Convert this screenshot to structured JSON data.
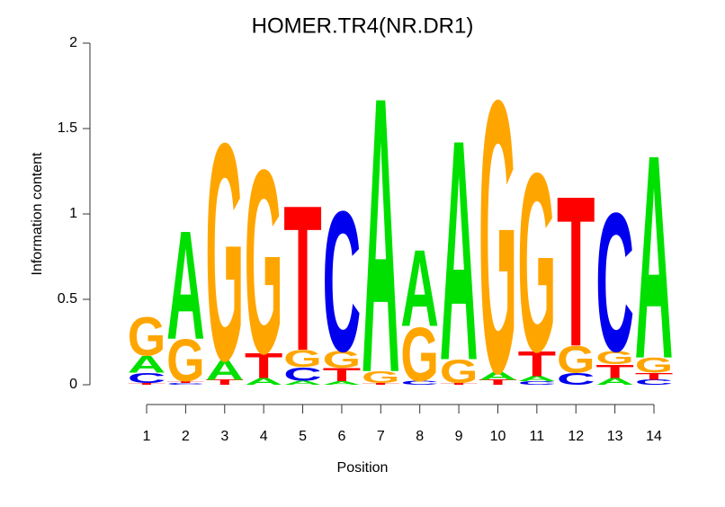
{
  "chart_data": {
    "type": "sequence-logo",
    "title": "HOMER.TR4(NR.DR1)",
    "x_label": "Position",
    "y_label": "Information content",
    "categories": [
      "1",
      "2",
      "3",
      "4",
      "5",
      "6",
      "7",
      "8",
      "9",
      "10",
      "11",
      "12",
      "13",
      "14"
    ],
    "ylim": [
      0,
      2
    ],
    "yticks": [
      0,
      0.5,
      1,
      1.5,
      2
    ],
    "colors": {
      "A": "#00e000",
      "C": "#0000ee",
      "G": "#ffa500",
      "T": "#ff0000"
    },
    "stacks": [
      [
        {
          "letter": "T",
          "value": 0.01
        },
        {
          "letter": "C",
          "value": 0.06
        },
        {
          "letter": "A",
          "value": 0.1
        },
        {
          "letter": "G",
          "value": 0.23
        }
      ],
      [
        {
          "letter": "C",
          "value": 0.01
        },
        {
          "letter": "T",
          "value": 0.01
        },
        {
          "letter": "G",
          "value": 0.25
        },
        {
          "letter": "A",
          "value": 0.65
        }
      ],
      [
        {
          "letter": "T",
          "value": 0.03
        },
        {
          "letter": "A",
          "value": 0.12
        },
        {
          "letter": "G",
          "value": 1.3
        }
      ],
      [
        {
          "letter": "A",
          "value": 0.04
        },
        {
          "letter": "T",
          "value": 0.15
        },
        {
          "letter": "G",
          "value": 1.1
        }
      ],
      [
        {
          "letter": "A",
          "value": 0.025
        },
        {
          "letter": "C",
          "value": 0.08
        },
        {
          "letter": "G",
          "value": 0.1
        },
        {
          "letter": "T",
          "value": 0.87
        }
      ],
      [
        {
          "letter": "A",
          "value": 0.02
        },
        {
          "letter": "T",
          "value": 0.08
        },
        {
          "letter": "G",
          "value": 0.1
        },
        {
          "letter": "C",
          "value": 0.84
        }
      ],
      [
        {
          "letter": "T",
          "value": 0.01
        },
        {
          "letter": "G",
          "value": 0.07
        },
        {
          "letter": "A",
          "value": 1.65
        }
      ],
      [
        {
          "letter": "C",
          "value": 0.025
        },
        {
          "letter": "G",
          "value": 0.32
        },
        {
          "letter": "A",
          "value": 0.46
        }
      ],
      [
        {
          "letter": "T",
          "value": 0.01
        },
        {
          "letter": "G",
          "value": 0.14
        },
        {
          "letter": "A",
          "value": 1.32
        }
      ],
      [
        {
          "letter": "T",
          "value": 0.03
        },
        {
          "letter": "A",
          "value": 0.05
        },
        {
          "letter": "G",
          "value": 1.63
        }
      ],
      [
        {
          "letter": "C",
          "value": 0.02
        },
        {
          "letter": "A",
          "value": 0.03
        },
        {
          "letter": "T",
          "value": 0.15
        },
        {
          "letter": "G",
          "value": 1.07
        }
      ],
      [
        {
          "letter": "C",
          "value": 0.07
        },
        {
          "letter": "G",
          "value": 0.16
        },
        {
          "letter": "T",
          "value": 0.9
        }
      ],
      [
        {
          "letter": "A",
          "value": 0.04
        },
        {
          "letter": "T",
          "value": 0.08
        },
        {
          "letter": "G",
          "value": 0.08
        },
        {
          "letter": "C",
          "value": 0.83
        }
      ],
      [
        {
          "letter": "C",
          "value": 0.03
        },
        {
          "letter": "T",
          "value": 0.04
        },
        {
          "letter": "G",
          "value": 0.09
        },
        {
          "letter": "A",
          "value": 1.22
        }
      ]
    ]
  }
}
